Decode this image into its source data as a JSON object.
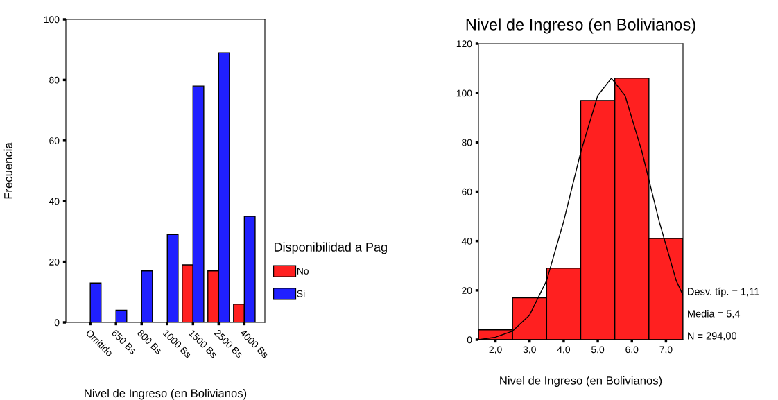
{
  "chart_data": [
    {
      "type": "bar",
      "xlabel": "Nivel de Ingreso (en Bolivianos)",
      "ylabel": "Frecuencia",
      "categories": [
        "Omitido",
        "650 Bs",
        "800 Bs",
        "1000 Bs",
        "1500 Bs",
        "2500 Bs",
        "4000 Bs"
      ],
      "series": [
        {
          "name": "No",
          "color": "#ff2020",
          "values": [
            null,
            null,
            null,
            null,
            19,
            17,
            6
          ]
        },
        {
          "name": "Si",
          "color": "#2020ff",
          "values": [
            13,
            4,
            17,
            29,
            78,
            89,
            35
          ]
        }
      ],
      "legend_title": "Disponibilidad a Pag",
      "legend": "right",
      "ylim": [
        0,
        100
      ],
      "yticks": [
        0,
        20,
        40,
        60,
        80,
        100
      ]
    },
    {
      "type": "histogram",
      "title": "Nivel de Ingreso (en Bolivianos)",
      "xlabel": "Nivel de Ingreso (en Bolivianos)",
      "bins": [
        1.5,
        2.5,
        3.5,
        4.5,
        5.5,
        6.5,
        7.5
      ],
      "values": [
        4,
        17,
        29,
        97,
        106,
        41
      ],
      "color": "#ff2020",
      "series": [
        {
          "type": "line",
          "color": "#000000",
          "x": [
            1.5,
            2.0,
            2.5,
            3.0,
            3.5,
            4.0,
            4.5,
            5.0,
            5.4,
            5.8,
            6.3,
            6.8,
            7.3,
            7.5
          ],
          "values": [
            0,
            1,
            3.5,
            10,
            24,
            48,
            76,
            99,
            106,
            99,
            76,
            48,
            24,
            18
          ]
        }
      ],
      "xlim": [
        1.5,
        7.5
      ],
      "xticks": [
        {
          "value": 2,
          "label": "2,0"
        },
        {
          "value": 3,
          "label": "3,0"
        },
        {
          "value": 4,
          "label": "4,0"
        },
        {
          "value": 5,
          "label": "5,0"
        },
        {
          "value": 6,
          "label": "6,0"
        },
        {
          "value": 7,
          "label": "7,0"
        }
      ],
      "ylim": [
        0,
        120
      ],
      "yticks": [
        0,
        20,
        40,
        60,
        80,
        100,
        120
      ],
      "annotations": [
        "Desv. típ. = 1,11",
        "Media = 5,4",
        "N = 294,00"
      ]
    }
  ]
}
